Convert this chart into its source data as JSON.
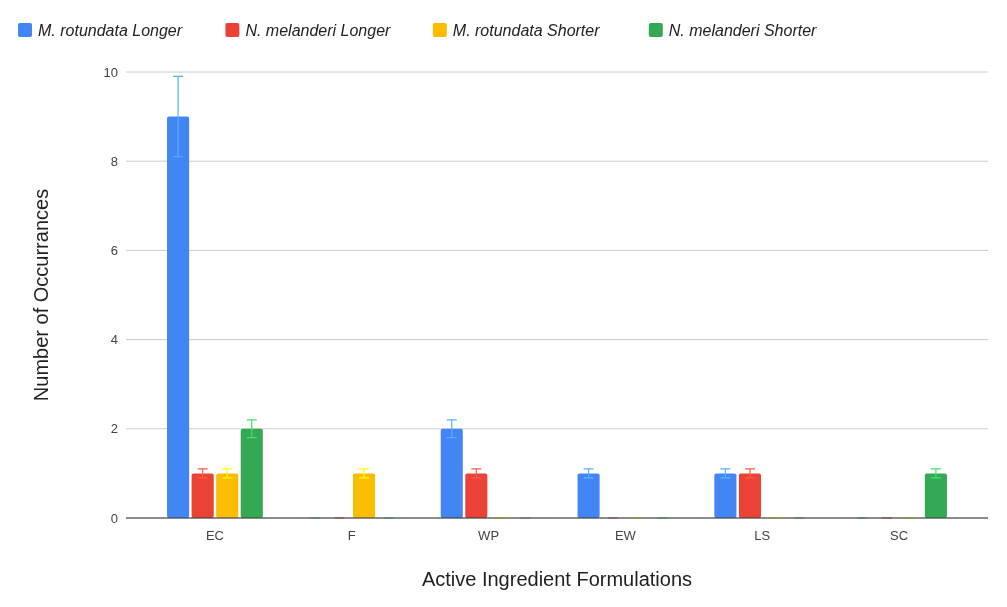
{
  "chart_data": {
    "type": "bar",
    "xlabel": "Active Ingredient Formulations",
    "ylabel": "Number of Occurrances",
    "categories": [
      "EC",
      "F",
      "WP",
      "EW",
      "LS",
      "SC"
    ],
    "series": [
      {
        "name": "M. rotundata Longer",
        "color": "#4285f4",
        "values": [
          9,
          0,
          2,
          1,
          1,
          0
        ],
        "errors": [
          0.9,
          0,
          0.2,
          0.1,
          0.1,
          0
        ]
      },
      {
        "name": "N. melanderi Longer",
        "color": "#ea4335",
        "values": [
          1,
          0,
          1,
          0,
          1,
          0
        ],
        "errors": [
          0.1,
          0,
          0.1,
          0,
          0.1,
          0
        ]
      },
      {
        "name": "M. rotundata Shorter",
        "color": "#fbbc04",
        "values": [
          1,
          1,
          0,
          0,
          0,
          0
        ],
        "errors": [
          0.1,
          0.1,
          0,
          0,
          0,
          0
        ]
      },
      {
        "name": "N. melanderi Shorter",
        "color": "#34a853",
        "values": [
          2,
          0,
          0,
          0,
          0,
          1
        ],
        "errors": [
          0.2,
          0,
          0,
          0,
          0,
          0.1
        ]
      }
    ],
    "ylim": [
      0,
      10
    ],
    "yticks": [
      0,
      2,
      4,
      6,
      8,
      10
    ],
    "grid": "y",
    "legend": "top"
  }
}
